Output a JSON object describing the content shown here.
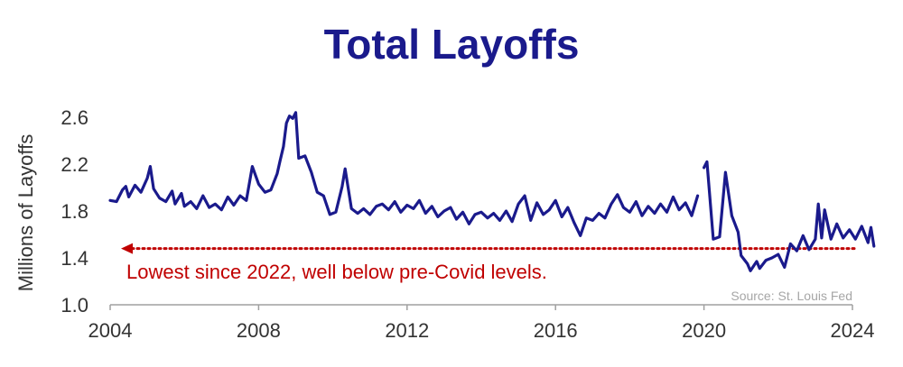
{
  "chart_data": {
    "type": "line",
    "title": "Total Layoffs",
    "ylabel": "Millions of Layoffs",
    "xlabel": "",
    "xlim": [
      2004,
      2024
    ],
    "ylim": [
      1.0,
      2.6
    ],
    "xticks": [
      2004,
      2008,
      2012,
      2016,
      2020,
      2024
    ],
    "yticks": [
      1.0,
      1.4,
      1.8,
      2.2,
      2.6
    ],
    "ytick_labels": [
      "1.0",
      "1.4",
      "1.8",
      "2.2",
      "2.6"
    ],
    "grid": false,
    "line_color": "#1a1a8c",
    "reference_line": {
      "y": 1.48,
      "style": "dotted",
      "color": "#c00000"
    },
    "annotation": "Lowest since 2022, well below pre-Covid levels.",
    "source": "Source: St. Louis Fed",
    "series": [
      {
        "segments": [
          [
            [
              2004.0,
              1.89
            ],
            [
              2004.17,
              1.88
            ],
            [
              2004.33,
              1.98
            ],
            [
              2004.42,
              2.01
            ],
            [
              2004.5,
              1.92
            ],
            [
              2004.67,
              2.02
            ],
            [
              2004.83,
              1.96
            ],
            [
              2005.0,
              2.08
            ],
            [
              2005.08,
              2.18
            ],
            [
              2005.17,
              1.99
            ],
            [
              2005.33,
              1.91
            ],
            [
              2005.5,
              1.88
            ],
            [
              2005.67,
              1.97
            ],
            [
              2005.75,
              1.86
            ],
            [
              2005.92,
              1.95
            ],
            [
              2006.0,
              1.84
            ],
            [
              2006.17,
              1.88
            ],
            [
              2006.33,
              1.82
            ],
            [
              2006.5,
              1.93
            ],
            [
              2006.67,
              1.83
            ],
            [
              2006.83,
              1.86
            ],
            [
              2007.0,
              1.81
            ],
            [
              2007.17,
              1.92
            ],
            [
              2007.33,
              1.85
            ],
            [
              2007.5,
              1.93
            ],
            [
              2007.67,
              1.89
            ],
            [
              2007.83,
              2.18
            ],
            [
              2008.0,
              2.03
            ],
            [
              2008.17,
              1.96
            ],
            [
              2008.33,
              1.98
            ],
            [
              2008.5,
              2.12
            ],
            [
              2008.58,
              2.23
            ],
            [
              2008.67,
              2.35
            ],
            [
              2008.75,
              2.55
            ],
            [
              2008.83,
              2.61
            ],
            [
              2008.92,
              2.59
            ],
            [
              2009.0,
              2.64
            ],
            [
              2009.08,
              2.25
            ],
            [
              2009.25,
              2.27
            ],
            [
              2009.42,
              2.13
            ],
            [
              2009.58,
              1.96
            ],
            [
              2009.75,
              1.93
            ],
            [
              2009.92,
              1.77
            ],
            [
              2010.08,
              1.79
            ],
            [
              2010.25,
              2.01
            ],
            [
              2010.33,
              2.16
            ],
            [
              2010.5,
              1.82
            ],
            [
              2010.67,
              1.78
            ],
            [
              2010.83,
              1.82
            ],
            [
              2011.0,
              1.77
            ],
            [
              2011.17,
              1.84
            ],
            [
              2011.33,
              1.86
            ],
            [
              2011.5,
              1.81
            ],
            [
              2011.67,
              1.88
            ],
            [
              2011.83,
              1.79
            ],
            [
              2012.0,
              1.85
            ],
            [
              2012.17,
              1.82
            ],
            [
              2012.33,
              1.89
            ],
            [
              2012.5,
              1.78
            ],
            [
              2012.67,
              1.84
            ],
            [
              2012.83,
              1.75
            ],
            [
              2013.0,
              1.8
            ],
            [
              2013.17,
              1.83
            ],
            [
              2013.33,
              1.73
            ],
            [
              2013.5,
              1.79
            ],
            [
              2013.67,
              1.69
            ],
            [
              2013.83,
              1.77
            ],
            [
              2014.0,
              1.79
            ],
            [
              2014.17,
              1.74
            ],
            [
              2014.33,
              1.78
            ],
            [
              2014.5,
              1.72
            ],
            [
              2014.67,
              1.8
            ],
            [
              2014.83,
              1.71
            ],
            [
              2015.0,
              1.86
            ],
            [
              2015.17,
              1.93
            ],
            [
              2015.33,
              1.72
            ],
            [
              2015.5,
              1.87
            ],
            [
              2015.67,
              1.77
            ],
            [
              2015.83,
              1.81
            ],
            [
              2016.0,
              1.89
            ],
            [
              2016.17,
              1.75
            ],
            [
              2016.33,
              1.83
            ],
            [
              2016.5,
              1.7
            ],
            [
              2016.67,
              1.59
            ],
            [
              2016.83,
              1.74
            ],
            [
              2017.0,
              1.72
            ],
            [
              2017.17,
              1.78
            ],
            [
              2017.33,
              1.74
            ],
            [
              2017.5,
              1.86
            ],
            [
              2017.67,
              1.94
            ],
            [
              2017.83,
              1.83
            ],
            [
              2018.0,
              1.79
            ],
            [
              2018.17,
              1.88
            ],
            [
              2018.33,
              1.76
            ],
            [
              2018.5,
              1.84
            ],
            [
              2018.67,
              1.78
            ],
            [
              2018.83,
              1.86
            ],
            [
              2019.0,
              1.79
            ],
            [
              2019.17,
              1.92
            ],
            [
              2019.33,
              1.81
            ],
            [
              2019.5,
              1.87
            ],
            [
              2019.67,
              1.76
            ],
            [
              2019.83,
              1.93
            ]
          ],
          [
            [
              2020.0,
              2.17
            ],
            [
              2020.08,
              2.22
            ],
            [
              2020.25,
              1.56
            ],
            [
              2020.42,
              1.58
            ],
            [
              2020.58,
              2.13
            ],
            [
              2020.75,
              1.76
            ],
            [
              2020.92,
              1.62
            ],
            [
              2021.0,
              1.42
            ],
            [
              2021.17,
              1.35
            ],
            [
              2021.25,
              1.29
            ],
            [
              2021.42,
              1.37
            ],
            [
              2021.5,
              1.31
            ],
            [
              2021.67,
              1.38
            ],
            [
              2021.83,
              1.4
            ],
            [
              2022.0,
              1.43
            ],
            [
              2022.17,
              1.32
            ],
            [
              2022.33,
              1.52
            ],
            [
              2022.5,
              1.46
            ],
            [
              2022.67,
              1.59
            ],
            [
              2022.83,
              1.47
            ],
            [
              2023.0,
              1.56
            ],
            [
              2023.08,
              1.86
            ],
            [
              2023.17,
              1.57
            ],
            [
              2023.25,
              1.81
            ],
            [
              2023.42,
              1.56
            ],
            [
              2023.58,
              1.69
            ],
            [
              2023.75,
              1.57
            ],
            [
              2023.92,
              1.64
            ],
            [
              2024.08,
              1.56
            ],
            [
              2024.25,
              1.67
            ],
            [
              2024.42,
              1.53
            ],
            [
              2024.5,
              1.66
            ],
            [
              2024.58,
              1.5
            ]
          ]
        ]
      }
    ]
  }
}
